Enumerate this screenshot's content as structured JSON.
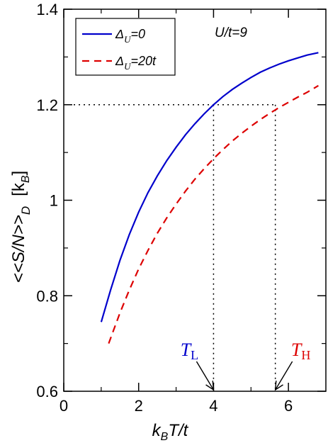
{
  "chart_data": {
    "type": "line",
    "xlabel": {
      "k": "k",
      "sub": "B",
      "rest": "T/t"
    },
    "ylabel": {
      "main": "<<S/N>>",
      "sub": "D",
      "unit_open": "[k",
      "unit_sub": "B",
      "unit_close": "]"
    },
    "xlim": [
      0,
      7
    ],
    "ylim": [
      0.6,
      1.4
    ],
    "x_ticks": [
      0,
      2,
      4,
      6
    ],
    "x_tick_labels": [
      "0",
      "2",
      "4",
      "6"
    ],
    "y_ticks": [
      0.6,
      0.8,
      1.0,
      1.2,
      1.4
    ],
    "y_tick_labels": [
      "0.6",
      "0.8",
      "1",
      "1.2",
      "1.4"
    ],
    "annotation_text": "U/t=9",
    "reference_y": 1.2,
    "reference_x": [
      4.0,
      5.65
    ],
    "markers": [
      {
        "label": "T",
        "sub": "L",
        "x": 4.0,
        "color": "#0000cc"
      },
      {
        "label": "T",
        "sub": "H",
        "x": 5.65,
        "color": "#dd0000"
      }
    ],
    "series": [
      {
        "name": "Δ",
        "name_sub": "U",
        "name_rest": "=0",
        "color": "#0000cc",
        "dash": "",
        "x": [
          1.0,
          1.25,
          1.5,
          1.75,
          2.0,
          2.25,
          2.5,
          2.75,
          3.0,
          3.25,
          3.5,
          3.75,
          4.0,
          4.25,
          4.5,
          4.75,
          5.0,
          5.25,
          5.5,
          5.75,
          6.0,
          6.25,
          6.5,
          6.8
        ],
        "y": [
          0.745,
          0.812,
          0.874,
          0.928,
          0.975,
          1.016,
          1.051,
          1.083,
          1.111,
          1.137,
          1.16,
          1.181,
          1.2,
          1.217,
          1.232,
          1.245,
          1.257,
          1.268,
          1.277,
          1.285,
          1.292,
          1.298,
          1.304,
          1.309
        ]
      },
      {
        "name": "Δ",
        "name_sub": "U",
        "name_rest": "=20t",
        "color": "#dd0000",
        "dash": "10,7",
        "x": [
          1.2,
          1.5,
          1.75,
          2.0,
          2.25,
          2.5,
          2.75,
          3.0,
          3.25,
          3.5,
          3.75,
          4.0,
          4.25,
          4.5,
          4.75,
          5.0,
          5.25,
          5.5,
          5.75,
          6.0,
          6.25,
          6.5,
          6.8
        ],
        "y": [
          0.7,
          0.764,
          0.812,
          0.856,
          0.895,
          0.931,
          0.963,
          0.992,
          1.019,
          1.044,
          1.066,
          1.087,
          1.106,
          1.124,
          1.14,
          1.155,
          1.169,
          1.182,
          1.194,
          1.205,
          1.216,
          1.226,
          1.24
        ]
      }
    ]
  }
}
